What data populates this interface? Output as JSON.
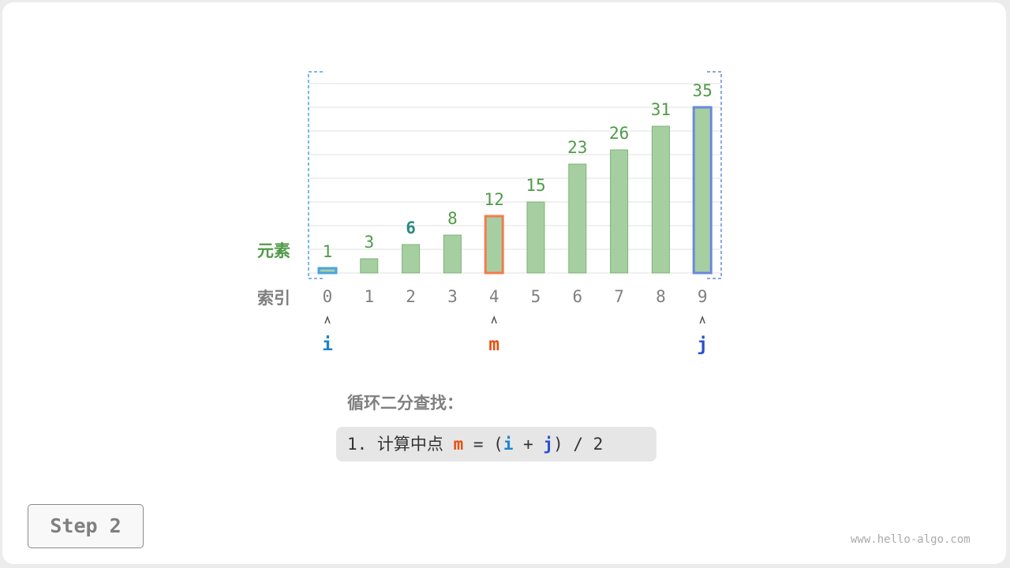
{
  "chart_data": {
    "type": "bar",
    "categories": [
      "0",
      "1",
      "2",
      "3",
      "4",
      "5",
      "6",
      "7",
      "8",
      "9"
    ],
    "values": [
      1,
      3,
      6,
      8,
      12,
      15,
      23,
      26,
      31,
      35
    ],
    "row_labels": {
      "values": "元素",
      "index": "索引"
    },
    "highlights": {
      "i": 0,
      "m": 4,
      "j": 9,
      "bold_value_index": 2
    },
    "grid": true
  },
  "pointers": {
    "i": "i",
    "m": "m",
    "j": "j"
  },
  "colors": {
    "bar_fill": "#a6cfa1",
    "bar_stroke": "#7cb276",
    "value_text": "#4f9a48",
    "index_text": "#7f7f7f",
    "i": "#1a85d0",
    "m": "#e8500f",
    "j": "#2b4fcf",
    "m_outline": "#f47c4c",
    "i_outline": "#4aa3e0",
    "j_outline": "#6a88dd",
    "bold_value": "#2e8b7e"
  },
  "heading": "循环二分查找：",
  "formula": {
    "prefix": "1. 计算中点 ",
    "m": "m",
    "eq": " = (",
    "i": "i",
    "plus": " + ",
    "j": "j",
    "suffix": ") / 2"
  },
  "step_label": "Step 2",
  "watermark": "www.hello-algo.com"
}
